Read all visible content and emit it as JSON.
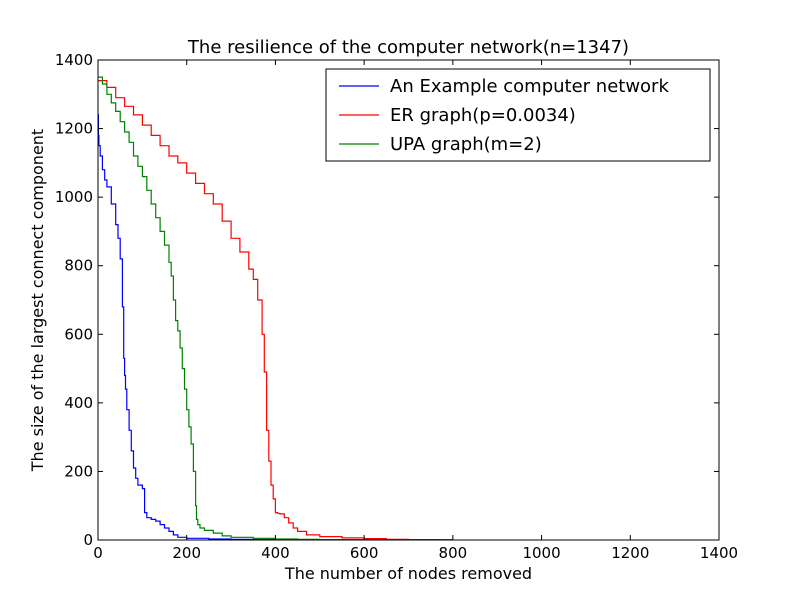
{
  "chart_data": {
    "type": "line",
    "title": "The resilience of the computer network(n=1347)",
    "xlabel": "The number of nodes removed",
    "ylabel": "The size of the largest connect component",
    "xlim": [
      0,
      1400
    ],
    "ylim": [
      0,
      1400
    ],
    "xticks": [
      0,
      200,
      400,
      600,
      800,
      1000,
      1200,
      1400
    ],
    "yticks": [
      0,
      200,
      400,
      600,
      800,
      1000,
      1200,
      1400
    ],
    "grid": false,
    "legend_position": "top-right",
    "series": [
      {
        "name": "An Example computer network",
        "color": "#0000ff",
        "x": [
          0,
          1,
          2,
          5,
          10,
          15,
          20,
          30,
          40,
          45,
          50,
          55,
          58,
          60,
          62,
          65,
          70,
          75,
          80,
          85,
          90,
          100,
          105,
          110,
          120,
          130,
          140,
          150,
          160,
          170,
          180,
          200,
          250,
          300,
          400,
          500,
          600,
          800
        ],
        "y": [
          1240,
          1180,
          1150,
          1120,
          1080,
          1050,
          1030,
          980,
          920,
          880,
          820,
          680,
          530,
          480,
          440,
          380,
          320,
          260,
          210,
          180,
          160,
          150,
          80,
          65,
          60,
          55,
          45,
          35,
          25,
          15,
          8,
          5,
          3,
          2,
          1,
          1,
          1,
          1
        ]
      },
      {
        "name": "ER graph(p=0.0034)",
        "color": "#ff0000",
        "x": [
          0,
          20,
          40,
          60,
          80,
          100,
          120,
          140,
          160,
          180,
          200,
          220,
          240,
          260,
          280,
          300,
          320,
          340,
          350,
          360,
          370,
          375,
          380,
          385,
          390,
          395,
          400,
          405,
          410,
          420,
          430,
          440,
          450,
          470,
          500,
          550,
          600,
          650,
          700,
          780
        ],
        "y": [
          1340,
          1320,
          1290,
          1265,
          1240,
          1210,
          1180,
          1150,
          1120,
          1100,
          1070,
          1040,
          1010,
          980,
          930,
          880,
          840,
          790,
          760,
          700,
          600,
          490,
          320,
          230,
          160,
          120,
          80,
          78,
          76,
          65,
          50,
          35,
          25,
          15,
          10,
          6,
          4,
          2,
          1,
          1
        ]
      },
      {
        "name": "UPA graph(m=2)",
        "color": "#008000",
        "x": [
          0,
          10,
          20,
          30,
          40,
          50,
          60,
          70,
          80,
          90,
          100,
          110,
          120,
          130,
          140,
          150,
          160,
          165,
          170,
          175,
          180,
          185,
          190,
          195,
          200,
          205,
          210,
          215,
          220,
          222,
          225,
          230,
          240,
          260,
          280,
          300,
          350,
          400,
          450,
          500
        ],
        "y": [
          1350,
          1330,
          1300,
          1275,
          1250,
          1220,
          1190,
          1160,
          1120,
          1090,
          1060,
          1020,
          980,
          940,
          900,
          860,
          810,
          770,
          700,
          640,
          610,
          560,
          500,
          440,
          380,
          330,
          280,
          200,
          100,
          60,
          45,
          35,
          28,
          20,
          12,
          8,
          5,
          3,
          2,
          1
        ]
      }
    ]
  }
}
